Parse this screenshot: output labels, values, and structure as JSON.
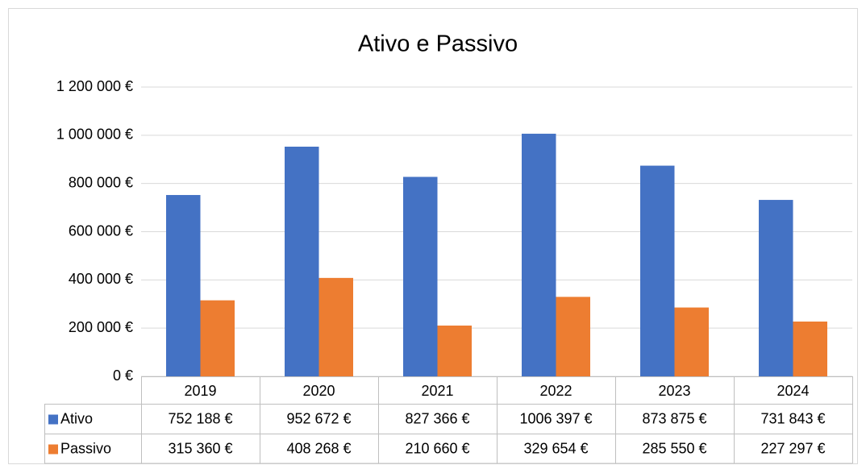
{
  "chart_data": {
    "type": "bar",
    "title": "Ativo e Passivo",
    "categories": [
      "2019",
      "2020",
      "2021",
      "2022",
      "2023",
      "2024"
    ],
    "series": [
      {
        "name": "Ativo",
        "color": "#4472c4",
        "values": [
          752188,
          952672,
          827366,
          1006397,
          873875,
          731843
        ],
        "value_labels": [
          "752 188 €",
          "952 672 €",
          "827 366 €",
          "1006 397 €",
          "873 875 €",
          "731 843 €"
        ]
      },
      {
        "name": "Passivo",
        "color": "#ed7d31",
        "values": [
          315360,
          408268,
          210660,
          329654,
          285550,
          227297
        ],
        "value_labels": [
          "315 360 €",
          "408 268 €",
          "210 660 €",
          "329 654 €",
          "285 550 €",
          "227 297 €"
        ]
      }
    ],
    "ylim": [
      0,
      1200000
    ],
    "yticks": [
      {
        "value": 0,
        "label": "0 €"
      },
      {
        "value": 200000,
        "label": "200 000 €"
      },
      {
        "value": 400000,
        "label": "400 000 €"
      },
      {
        "value": 600000,
        "label": "600 000 €"
      },
      {
        "value": 800000,
        "label": "800 000 €"
      },
      {
        "value": 1000000,
        "label": "1 000 000 €"
      },
      {
        "value": 1200000,
        "label": "1 200 000 €"
      }
    ],
    "grid": true,
    "data_table": true
  }
}
